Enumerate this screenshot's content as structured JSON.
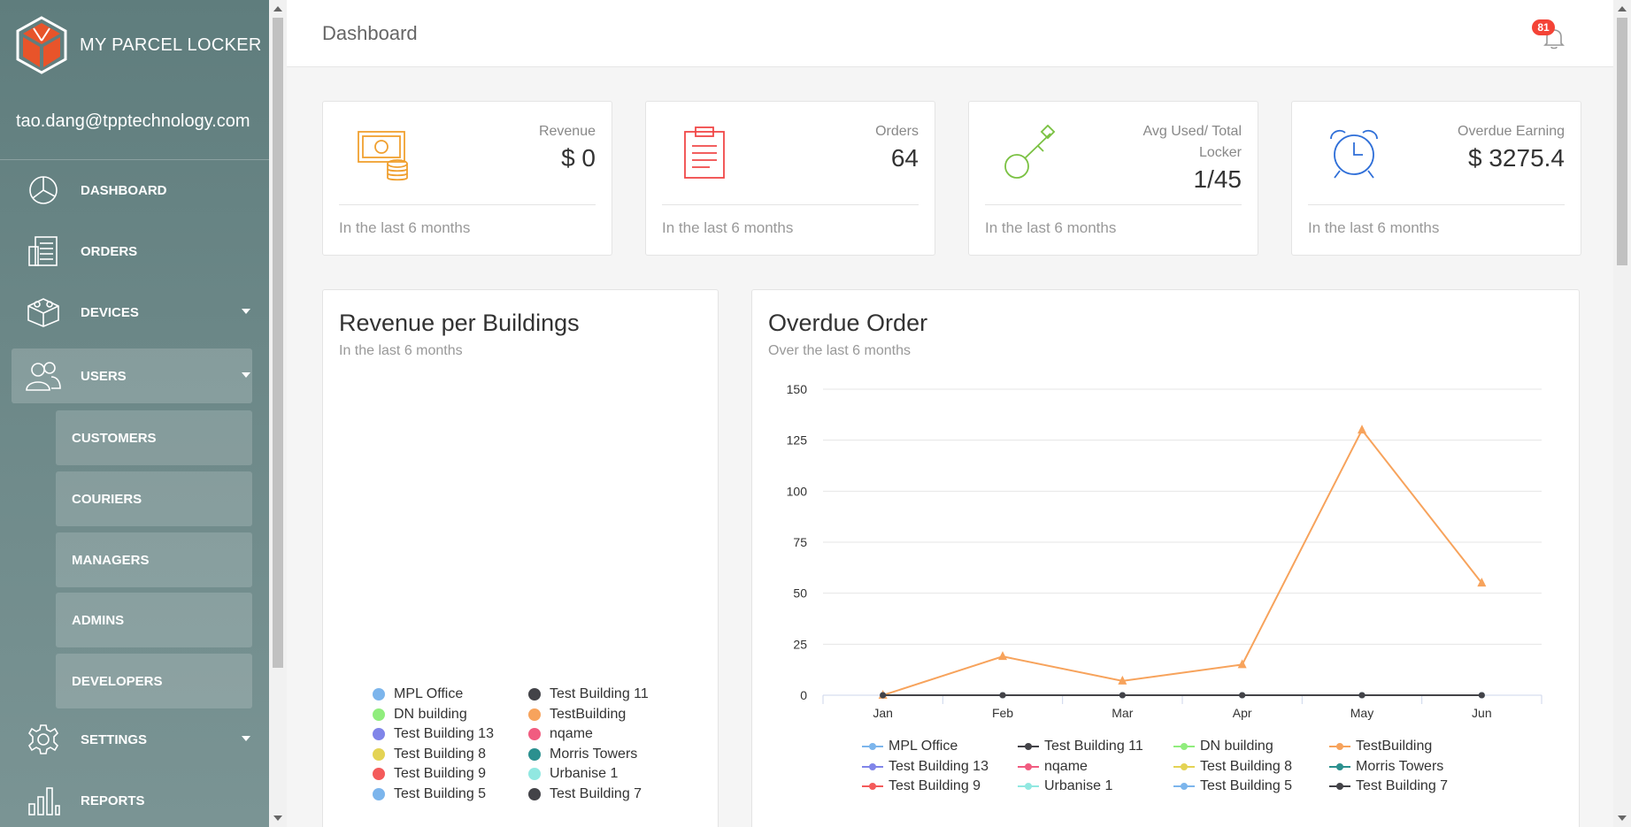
{
  "brand": {
    "title": "MY PARCEL LOCKER",
    "accent": "#e8542a"
  },
  "user": {
    "email": "tao.dang@tpptechnology.com"
  },
  "nav": [
    {
      "label": "DASHBOARD",
      "icon": "dashboard-icon"
    },
    {
      "label": "ORDERS",
      "icon": "orders-icon"
    },
    {
      "label": "DEVICES",
      "icon": "devices-icon"
    },
    {
      "label": "USERS",
      "icon": "users-icon"
    },
    {
      "label": "SETTINGS",
      "icon": "settings-icon"
    },
    {
      "label": "REPORTS",
      "icon": "reports-icon"
    }
  ],
  "users_sub": [
    {
      "label": "CUSTOMERS"
    },
    {
      "label": "COURIERS"
    },
    {
      "label": "MANAGERS"
    },
    {
      "label": "ADMINS"
    },
    {
      "label": "DEVELOPERS"
    }
  ],
  "header": {
    "title": "Dashboard",
    "notification_count": "81"
  },
  "stats": [
    {
      "label": "Revenue",
      "value": "$ 0",
      "footer": "In the last 6 months",
      "icon": "money-icon",
      "color": "#f0a030"
    },
    {
      "label": "Orders",
      "value": "64",
      "footer": "In the last 6 months",
      "icon": "clipboard-icon",
      "color": "#f04848"
    },
    {
      "label": "Avg Used/ Total Locker",
      "value": "1/45",
      "footer": "In the last 6 months",
      "icon": "key-icon",
      "color": "#7ac142"
    },
    {
      "label": "Overdue Earning",
      "value": "$ 3275.4",
      "footer": "In the last 6 months",
      "icon": "alarm-clock-icon",
      "color": "#2f6fd8"
    }
  ],
  "revenue_card": {
    "title": "Revenue per Buildings",
    "subtitle": "In the last 6 months",
    "legend": [
      {
        "name": "MPL Office",
        "color": "#7cb5ec"
      },
      {
        "name": "Test Building 11",
        "color": "#434348"
      },
      {
        "name": "DN building",
        "color": "#90ed7d"
      },
      {
        "name": "TestBuilding",
        "color": "#f7a35c"
      },
      {
        "name": "Test Building 13",
        "color": "#8085e9"
      },
      {
        "name": "nqame",
        "color": "#f15c80"
      },
      {
        "name": "Test Building 8",
        "color": "#e4d354"
      },
      {
        "name": "Morris Towers",
        "color": "#2b908f"
      },
      {
        "name": "Test Building 9",
        "color": "#f45b5b"
      },
      {
        "name": "Urbanise 1",
        "color": "#91e8e1"
      },
      {
        "name": "Test Building 5",
        "color": "#7cb5ec"
      },
      {
        "name": "Test Building 7",
        "color": "#434348"
      }
    ]
  },
  "overdue_card": {
    "title": "Overdue Order",
    "subtitle": "Over the last 6 months"
  },
  "chart_data": {
    "type": "line",
    "title": "Overdue Order",
    "subtitle": "Over the last 6 months",
    "categories": [
      "Jan",
      "Feb",
      "Mar",
      "Apr",
      "May",
      "Jun"
    ],
    "ylim": [
      0,
      150
    ],
    "yticks": [
      0,
      25,
      50,
      75,
      100,
      125,
      150
    ],
    "grid": true,
    "legend_position": "bottom",
    "series": [
      {
        "name": "MPL Office",
        "color": "#7cb5ec",
        "values": [
          0,
          0,
          0,
          0,
          0,
          0
        ]
      },
      {
        "name": "Test Building 11",
        "color": "#434348",
        "values": [
          0,
          0,
          0,
          0,
          0,
          0
        ]
      },
      {
        "name": "DN building",
        "color": "#90ed7d",
        "values": [
          0,
          0,
          0,
          0,
          0,
          0
        ]
      },
      {
        "name": "TestBuilding",
        "color": "#f7a35c",
        "values": [
          0,
          19,
          7,
          15,
          130,
          55
        ]
      },
      {
        "name": "Test Building 13",
        "color": "#8085e9",
        "values": [
          0,
          0,
          0,
          0,
          0,
          0
        ]
      },
      {
        "name": "nqame",
        "color": "#f15c80",
        "values": [
          0,
          0,
          0,
          0,
          0,
          0
        ]
      },
      {
        "name": "Test Building 8",
        "color": "#e4d354",
        "values": [
          0,
          0,
          0,
          0,
          0,
          0
        ]
      },
      {
        "name": "Morris Towers",
        "color": "#2b908f",
        "values": [
          0,
          0,
          0,
          0,
          0,
          0
        ]
      },
      {
        "name": "Test Building 9",
        "color": "#f45b5b",
        "values": [
          0,
          0,
          0,
          0,
          0,
          0
        ]
      },
      {
        "name": "Urbanise 1",
        "color": "#91e8e1",
        "values": [
          0,
          0,
          0,
          0,
          0,
          0
        ]
      },
      {
        "name": "Test Building 5",
        "color": "#7cb5ec",
        "values": [
          0,
          0,
          0,
          0,
          0,
          0
        ]
      },
      {
        "name": "Test Building 7",
        "color": "#434348",
        "values": [
          0,
          0,
          0,
          0,
          0,
          0
        ]
      }
    ]
  }
}
